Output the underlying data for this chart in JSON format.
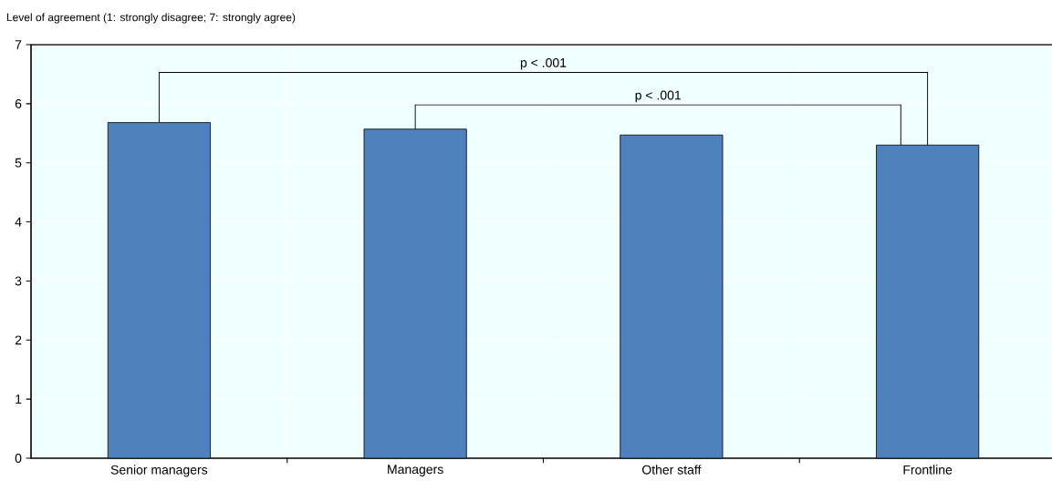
{
  "chart_data": {
    "type": "bar",
    "ylabel": "Level of agreement (1: strongly disagree; 7: strongly agree)",
    "categories": [
      "Senior managers",
      "Managers",
      "Other staff",
      "Frontline"
    ],
    "values": [
      5.68,
      5.57,
      5.47,
      5.3
    ],
    "color": "#4f81bd",
    "ylim": [
      0,
      7
    ],
    "yticks": [
      0,
      1,
      2,
      3,
      4,
      5,
      6,
      7
    ],
    "grid": true,
    "annotations": [
      "p < .001",
      "p < .001"
    ]
  }
}
